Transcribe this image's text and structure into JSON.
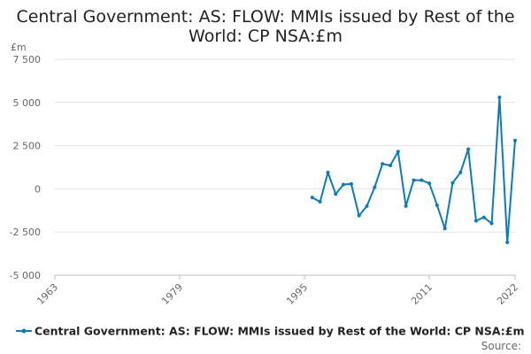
{
  "chart_data": {
    "type": "line",
    "title_line1": "Central Government: AS: FLOW: MMIs issued by Rest of the",
    "title_line2": "World: CP NSA:£m",
    "ylabel": "£m",
    "xlabel": "",
    "ylim": [
      -5000,
      7500
    ],
    "xlim": [
      1963,
      2022
    ],
    "y_ticks": [
      7500,
      5000,
      2500,
      0,
      -2500,
      -5000
    ],
    "y_tick_labels": [
      "7 500",
      "5 000",
      "2 500",
      "0",
      "-2 500",
      "-5 000"
    ],
    "x_ticks": [
      1963,
      1979,
      1995,
      2011,
      2022
    ],
    "x_tick_labels": [
      "1963",
      "1979",
      "1995",
      "2011",
      "2022"
    ],
    "grid": true,
    "legend_position": "bottom",
    "series": [
      {
        "name": "Central Government: AS: FLOW: MMIs issued by Rest of the World: CP NSA:£m",
        "color": "#0e7bb8",
        "x": [
          1996,
          1997,
          1998,
          1999,
          2000,
          2001,
          2002,
          2003,
          2004,
          2005,
          2006,
          2007,
          2008,
          2009,
          2010,
          2011,
          2012,
          2013,
          2014,
          2015,
          2016,
          2017,
          2018,
          2019,
          2020,
          2021,
          2022
        ],
        "y": [
          -500,
          -750,
          950,
          -300,
          250,
          280,
          -1550,
          -1000,
          100,
          1450,
          1350,
          2150,
          -1000,
          500,
          500,
          320,
          -950,
          -2300,
          350,
          950,
          2300,
          -1850,
          -1650,
          -2000,
          5300,
          -3100,
          2800
        ]
      }
    ]
  },
  "source_label": "Source:"
}
